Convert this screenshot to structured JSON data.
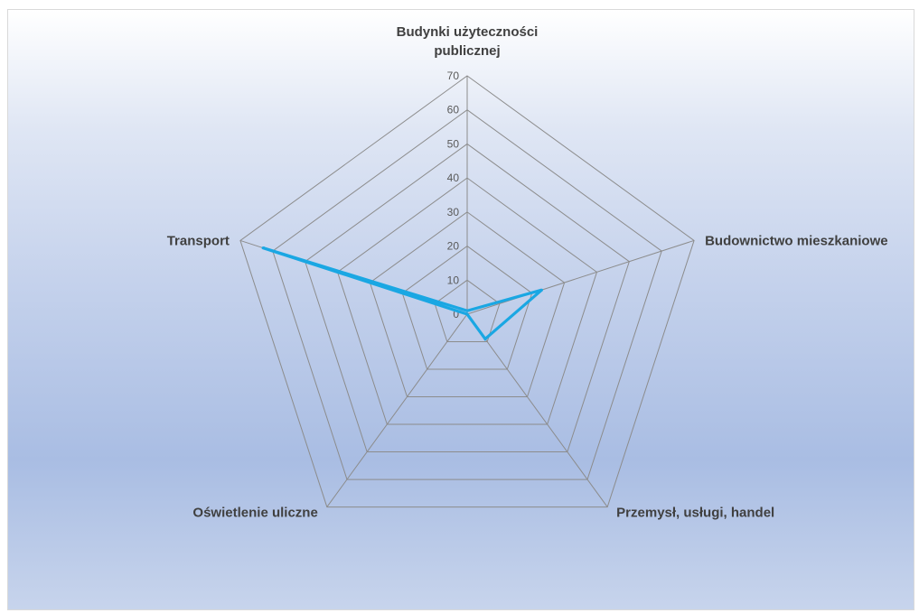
{
  "chart_data": {
    "type": "radar",
    "categories": [
      "Budynki użyteczności publicznej",
      "Budownictwo mieszkaniowe",
      "Przemysł, usługi, handel",
      "Oświetlenie uliczne",
      "Transport"
    ],
    "category_label_lines": [
      [
        "Budynki użyteczności",
        "publicznej"
      ],
      [
        "Budownictwo mieszkaniowe"
      ],
      [
        "Przemysł, usługi, handel"
      ],
      [
        "Oświetlenie uliczne"
      ],
      [
        "Transport"
      ]
    ],
    "series": [
      {
        "values": [
          1,
          23,
          9,
          0,
          63
        ],
        "color": "#1aa7e3"
      }
    ],
    "rlim": [
      0,
      70
    ],
    "ticks": [
      0,
      10,
      20,
      30,
      40,
      50,
      60,
      70
    ],
    "grid": true,
    "legend": "none",
    "gridColor": "#8c8c8c"
  }
}
